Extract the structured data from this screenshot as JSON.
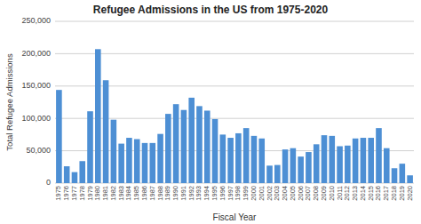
{
  "chart_data": {
    "type": "bar",
    "title": "Refugee Admissions in the US from 1975-2020",
    "xlabel": "Fiscal Year",
    "ylabel": "Total Refugee Admissions",
    "categories": [
      "1975",
      "1976",
      "1977",
      "1978",
      "1979",
      "1980",
      "1981",
      "1982",
      "1983",
      "1984",
      "1985",
      "1986",
      "1987",
      "1988",
      "1989",
      "1990",
      "1991",
      "1992",
      "1993",
      "1994",
      "1995",
      "1996",
      "1997",
      "1998",
      "1999",
      "2000",
      "2001",
      "2002",
      "2003",
      "2004",
      "2005",
      "2006",
      "2007",
      "2008",
      "2009",
      "2010",
      "2011",
      "2012",
      "2013",
      "2014",
      "2015",
      "2016",
      "2017",
      "2018",
      "2019",
      "2020"
    ],
    "values": [
      144000,
      26000,
      17000,
      34000,
      111000,
      207000,
      159000,
      98000,
      61000,
      70000,
      68000,
      62000,
      62000,
      76000,
      107000,
      122000,
      113000,
      132000,
      119000,
      112000,
      99000,
      75000,
      70000,
      77000,
      85000,
      73000,
      69000,
      27000,
      28000,
      52000,
      54000,
      41000,
      48000,
      60000,
      74000,
      73000,
      57000,
      58000,
      69000,
      70000,
      70000,
      85000,
      54000,
      23000,
      30000,
      12000
    ],
    "color": "#4d8fd4",
    "ylim": [
      0,
      250000
    ],
    "yticks": [
      0,
      {
        "value": 50000,
        "label": "50,000"
      },
      {
        "value": 100000,
        "label": "100,000"
      },
      {
        "value": 150000,
        "label": "150,000"
      },
      {
        "value": 200000,
        "label": "200,000"
      },
      {
        "value": 250000,
        "label": "250,000"
      }
    ],
    "grid": true
  }
}
